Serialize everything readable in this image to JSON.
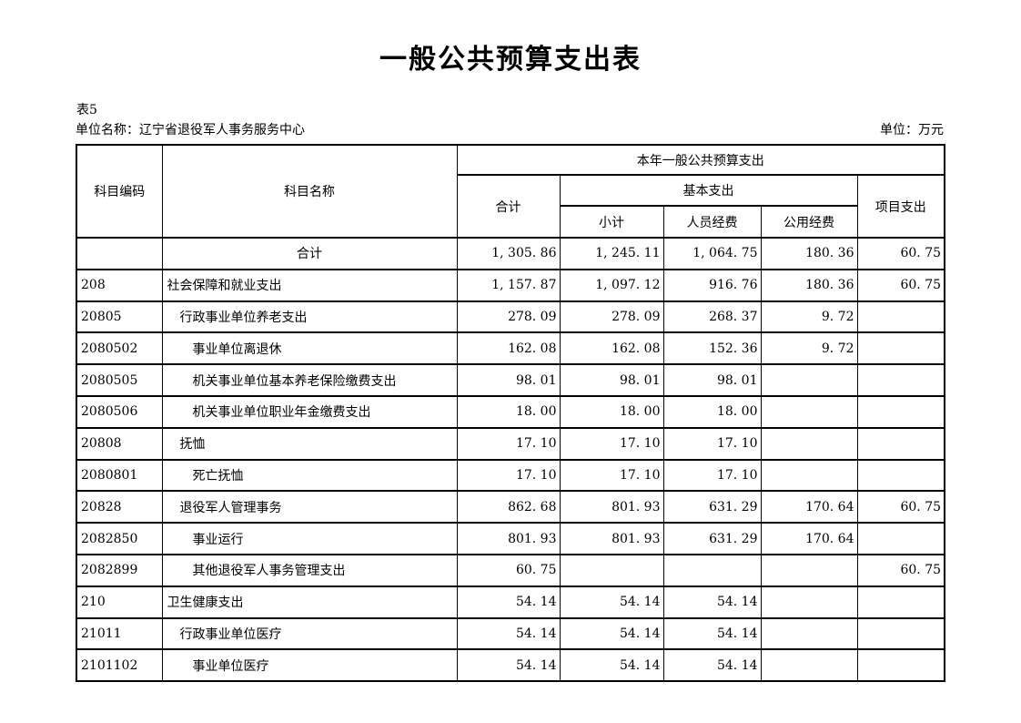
{
  "page": {
    "title": "一般公共预算支出表",
    "table_label": "表5",
    "unit_name_label": "单位名称：",
    "unit_name": "辽宁省退役军人事务服务中心",
    "unit_label": "单位：万元"
  },
  "table": {
    "header": {
      "subject_code": "科目编码",
      "subject_name": "科目名称",
      "current_year_group": "本年一般公共预算支出",
      "total": "合计",
      "basic_group": "基本支出",
      "subtotal": "小计",
      "personnel": "人员经费",
      "public": "公用经费",
      "project": "项目支出"
    },
    "rows": [
      {
        "code": "",
        "name": "合计",
        "align": "center",
        "indent": 0,
        "total": "1, 305. 86",
        "subtotal": "1, 245. 11",
        "personnel": "1, 064. 75",
        "public": "180. 36",
        "project": "60. 75"
      },
      {
        "code": "208",
        "name": "社会保障和就业支出",
        "align": "left",
        "indent": 0,
        "total": "1, 157. 87",
        "subtotal": "1, 097. 12",
        "personnel": "916. 76",
        "public": "180. 36",
        "project": "60. 75"
      },
      {
        "code": "20805",
        "name": "行政事业单位养老支出",
        "align": "left",
        "indent": 1,
        "total": "278. 09",
        "subtotal": "278. 09",
        "personnel": "268. 37",
        "public": "9. 72",
        "project": ""
      },
      {
        "code": "2080502",
        "name": "事业单位离退休",
        "align": "left",
        "indent": 2,
        "total": "162. 08",
        "subtotal": "162. 08",
        "personnel": "152. 36",
        "public": "9. 72",
        "project": ""
      },
      {
        "code": "2080505",
        "name": "机关事业单位基本养老保险缴费支出",
        "align": "left",
        "indent": 2,
        "total": "98. 01",
        "subtotal": "98. 01",
        "personnel": "98. 01",
        "public": "",
        "project": ""
      },
      {
        "code": "2080506",
        "name": "机关事业单位职业年金缴费支出",
        "align": "left",
        "indent": 2,
        "total": "18. 00",
        "subtotal": "18. 00",
        "personnel": "18. 00",
        "public": "",
        "project": ""
      },
      {
        "code": "20808",
        "name": "抚恤",
        "align": "left",
        "indent": 1,
        "total": "17. 10",
        "subtotal": "17. 10",
        "personnel": "17. 10",
        "public": "",
        "project": ""
      },
      {
        "code": "2080801",
        "name": "死亡抚恤",
        "align": "left",
        "indent": 2,
        "total": "17. 10",
        "subtotal": "17. 10",
        "personnel": "17. 10",
        "public": "",
        "project": ""
      },
      {
        "code": "20828",
        "name": "退役军人管理事务",
        "align": "left",
        "indent": 1,
        "total": "862. 68",
        "subtotal": "801. 93",
        "personnel": "631. 29",
        "public": "170. 64",
        "project": "60. 75"
      },
      {
        "code": "2082850",
        "name": "事业运行",
        "align": "left",
        "indent": 2,
        "total": "801. 93",
        "subtotal": "801. 93",
        "personnel": "631. 29",
        "public": "170. 64",
        "project": ""
      },
      {
        "code": "2082899",
        "name": "其他退役军人事务管理支出",
        "align": "left",
        "indent": 2,
        "total": "60. 75",
        "subtotal": "",
        "personnel": "",
        "public": "",
        "project": "60. 75"
      },
      {
        "code": "210",
        "name": "卫生健康支出",
        "align": "left",
        "indent": 0,
        "total": "54. 14",
        "subtotal": "54. 14",
        "personnel": "54. 14",
        "public": "",
        "project": ""
      },
      {
        "code": "21011",
        "name": "行政事业单位医疗",
        "align": "left",
        "indent": 1,
        "total": "54. 14",
        "subtotal": "54. 14",
        "personnel": "54. 14",
        "public": "",
        "project": ""
      },
      {
        "code": "2101102",
        "name": "事业单位医疗",
        "align": "left",
        "indent": 2,
        "total": "54. 14",
        "subtotal": "54. 14",
        "personnel": "54. 14",
        "public": "",
        "project": ""
      }
    ]
  }
}
